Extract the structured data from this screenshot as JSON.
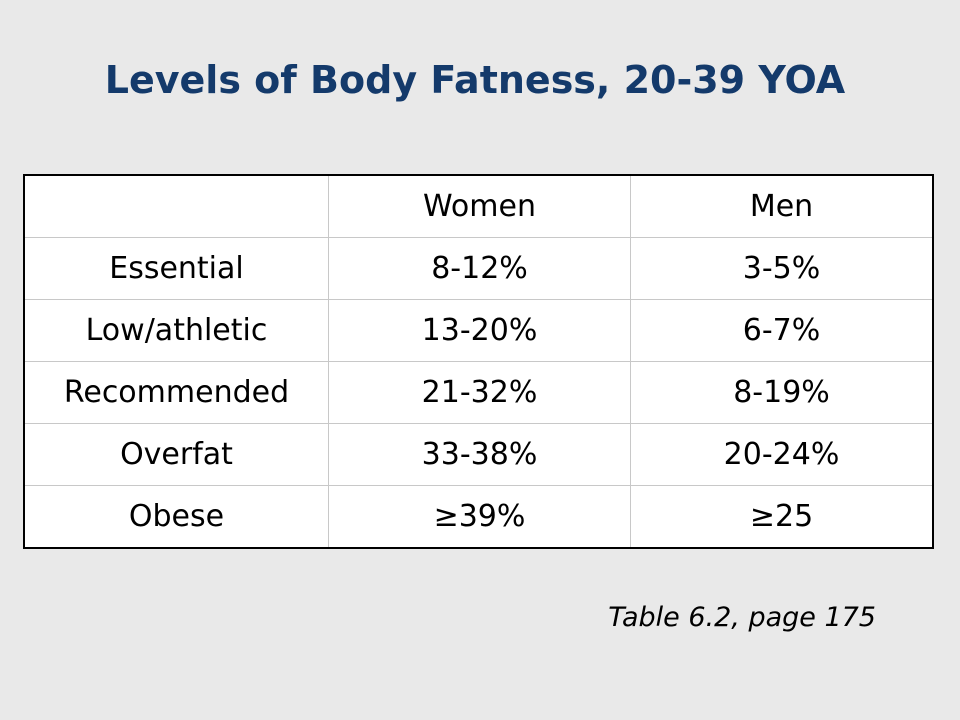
{
  "title": "Levels of Body Fatness, 20-39 YOA",
  "table": {
    "header": [
      "",
      "Women",
      "Men"
    ],
    "rows": [
      [
        "Essential",
        "8-12%",
        "3-5%"
      ],
      [
        "Low/athletic",
        "13-20%",
        "6-7%"
      ],
      [
        "Recommended",
        "21-32%",
        "8-19%"
      ],
      [
        "Overfat",
        "33-38%",
        "20-24%"
      ],
      [
        "Obese",
        "≥39%",
        "≥25"
      ]
    ]
  },
  "caption": "Table 6.2, page 175",
  "colors": {
    "title": "#143a6b",
    "background": "#e9e9e9",
    "table_background": "#ffffff"
  }
}
